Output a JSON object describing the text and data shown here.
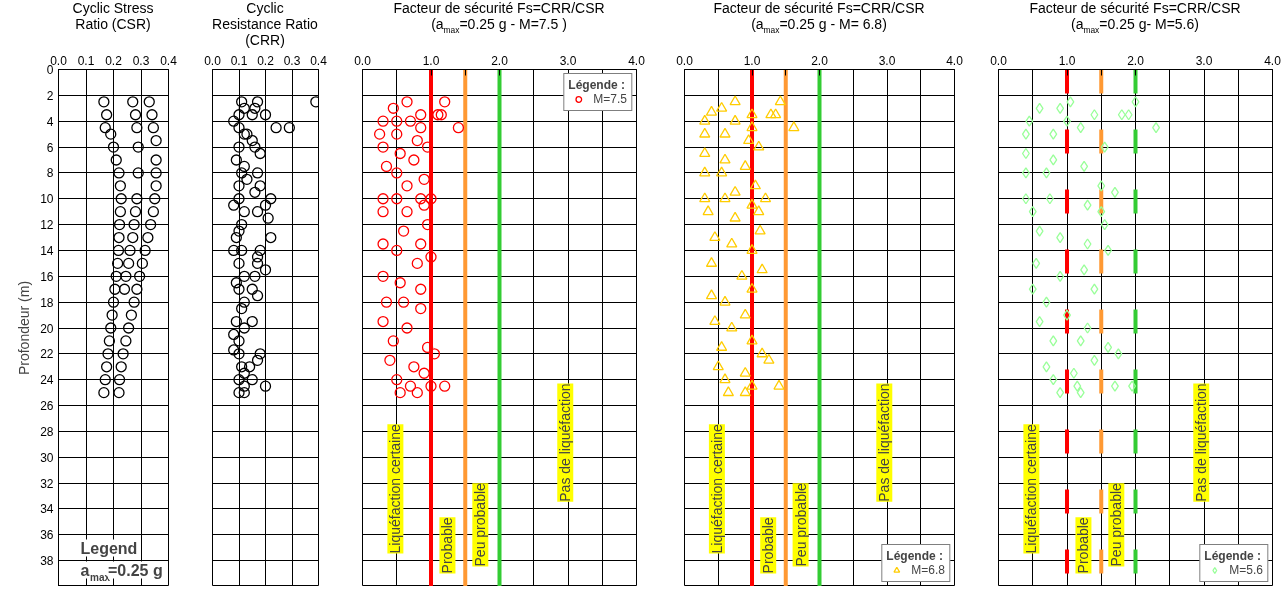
{
  "chart_data": [
    {
      "type": "scatter",
      "title": "Cyclic Stress Ratio (CSR)",
      "ylabel": "Profondeur (m)",
      "xlim": [
        0,
        0.4
      ],
      "xticks": [
        {
          "value": 0,
          "label": "0.0"
        },
        {
          "value": 0.1,
          "label": "0.1"
        },
        {
          "value": 0.2,
          "label": "0.2"
        },
        {
          "value": 0.3,
          "label": "0.3"
        },
        {
          "value": 0.4,
          "label": "0.4"
        }
      ],
      "ylim": [
        40,
        0
      ],
      "yticks": [
        0,
        2,
        4,
        6,
        8,
        10,
        12,
        14,
        16,
        18,
        20,
        22,
        24,
        26,
        28,
        30,
        32,
        34,
        36,
        38
      ],
      "grid": true,
      "marker": "circle",
      "annotations": [
        "Legend",
        "a$_{max}$=0.25 g"
      ],
      "series": [
        {
          "color": "#000000",
          "x": [
            0.165,
            0.175,
            0.17,
            0.19,
            0.2,
            0.21,
            0.22,
            0.225,
            0.228,
            0.225,
            0.222,
            0.22,
            0.218,
            0.215,
            0.21,
            0.205,
            0.2,
            0.195,
            0.19,
            0.185,
            0.18,
            0.175,
            0.17,
            0.165
          ],
          "values": [
            2.5,
            3.5,
            4.5,
            5,
            6,
            7,
            8,
            9,
            10,
            11,
            12,
            13,
            14,
            15,
            16,
            17,
            18,
            19,
            20,
            21,
            22,
            23,
            24,
            25
          ]
        },
        {
          "color": "#000000",
          "x": [
            0.27,
            0.28,
            0.285,
            0.29,
            0.29,
            0.285,
            0.28,
            0.275,
            0.27,
            0.26,
            0.255,
            0.245,
            0.24
          ],
          "values": [
            2.5,
            3.5,
            4.5,
            6,
            8,
            10,
            11,
            12,
            13,
            14,
            15,
            16,
            17
          ]
        },
        {
          "color": "#000000",
          "x": [
            0.33,
            0.34,
            0.345,
            0.355,
            0.355,
            0.355,
            0.355,
            0.35,
            0.345,
            0.335,
            0.325,
            0.315,
            0.305,
            0.295,
            0.285,
            0.275,
            0.265,
            0.255,
            0.245,
            0.235,
            0.228,
            0.222,
            0.22
          ],
          "values": [
            2.5,
            3.5,
            4.5,
            5.5,
            7,
            8,
            9,
            10,
            11,
            12,
            13,
            14,
            15,
            16,
            17,
            18,
            19,
            20,
            21,
            22,
            23,
            24,
            25
          ]
        }
      ]
    },
    {
      "type": "scatter",
      "title": "Cyclic Resistance Ratio (CRR)",
      "xlim": [
        0,
        0.4
      ],
      "xticks": [
        {
          "value": 0,
          "label": "0.0"
        },
        {
          "value": 0.1,
          "label": "0.1"
        },
        {
          "value": 0.2,
          "label": "0.2"
        },
        {
          "value": 0.3,
          "label": "0.3"
        },
        {
          "value": 0.4,
          "label": "0.4"
        }
      ],
      "ylim": [
        40,
        0
      ],
      "yticks": [
        0,
        2,
        4,
        6,
        8,
        10,
        12,
        14,
        16,
        18,
        20,
        22,
        24,
        26,
        28,
        30,
        32,
        34,
        36,
        38
      ],
      "grid": true,
      "marker": "circle",
      "tick_labels": "x",
      "series": [
        {
          "color": "#000000",
          "x": [
            0.11,
            0.17,
            0.39,
            0.12,
            0.16,
            0.15,
            0.2,
            0.08,
            0.24,
            0.29,
            0.1,
            0.13,
            0.15,
            0.16,
            0.18,
            0.09,
            0.12,
            0.17,
            0.13,
            0.18,
            0.16,
            0.1,
            0.22,
            0.08,
            0.2,
            0.17,
            0.21,
            0.11,
            0.09,
            0.22,
            0.18,
            0.08,
            0.17,
            0.17,
            0.2,
            0.09,
            0.16,
            0.15,
            0.17,
            0.12,
            0.09,
            0.15,
            0.08,
            0.1,
            0.08,
            0.18,
            0.17,
            0.14,
            0.12,
            0.15,
            0.2,
            0.1,
            0.12,
            0.1,
            0.12,
            0.1,
            0.11,
            0.1,
            0.12,
            0.1,
            0.11,
            0.1,
            0.12,
            0.1,
            0.11,
            0.12,
            0.1,
            0.11,
            0.1,
            0.12
          ],
          "values": [
            2.5,
            2.5,
            2.5,
            3,
            3,
            3.5,
            3.5,
            4,
            4.5,
            4.5,
            4.5,
            5,
            5.5,
            6,
            6.5,
            7,
            7.5,
            8,
            8.5,
            9,
            9.5,
            10,
            10,
            10.5,
            10.5,
            11,
            11.5,
            12,
            13,
            13,
            14,
            14,
            14.5,
            15,
            15.5,
            16.5,
            16,
            17,
            17.5,
            18,
            19.5,
            19.5,
            20.5,
            21,
            21.7,
            22,
            22.5,
            23,
            23.5,
            24,
            24.5,
            25,
            25,
            3.5,
            5,
            6,
            8,
            9,
            11,
            12.5,
            14,
            15,
            16,
            17,
            18.5,
            20,
            22,
            23,
            24,
            24.5
          ]
        }
      ]
    },
    {
      "type": "scatter",
      "title": "Facteur de sécurité Fs=CRR/CSR",
      "subtitle": "(a$_{max}$=0.25 g - M=7.5 )",
      "xlim": [
        0,
        4
      ],
      "xticks": [
        {
          "value": 0,
          "label": "0.0"
        },
        {
          "value": 0.5,
          "label": null
        },
        {
          "value": 1,
          "label": "1.0"
        },
        {
          "value": 1.5,
          "label": null
        },
        {
          "value": 2,
          "label": "2.0"
        },
        {
          "value": 2.5,
          "label": null
        },
        {
          "value": 3,
          "label": "3.0"
        },
        {
          "value": 3.5,
          "label": null
        },
        {
          "value": 4,
          "label": "4.0"
        }
      ],
      "ylim": [
        40,
        0
      ],
      "yticks": [
        0,
        2,
        4,
        6,
        8,
        10,
        12,
        14,
        16,
        18,
        20,
        22,
        24,
        26,
        28,
        30,
        32,
        34,
        36,
        38
      ],
      "grid": true,
      "marker": "circle",
      "tick_labels": "x",
      "legend": "top right",
      "legend_title": "Légende :",
      "ref_lines": [
        {
          "axis": "x",
          "value": 1,
          "color": "#ff0000",
          "line_style": "solid"
        },
        {
          "axis": "x",
          "value": 1.5,
          "color": "#ff9933",
          "line_style": "solid"
        },
        {
          "axis": "x",
          "value": 2,
          "color": "#33cc33",
          "line_style": "solid"
        }
      ],
      "annotations": [
        "Liquéfaction certaine",
        "Probable",
        "Peu probable",
        "Pas de liquéfaction"
      ],
      "series": [
        {
          "name": "M=7.5",
          "color": "#ff0000",
          "x": [
            0.65,
            1.2,
            0.45,
            1.15,
            1.1,
            0.85,
            0.3,
            0.5,
            0.7,
            1.4,
            0.85,
            0.25,
            0.5,
            0.8,
            0.95,
            0.3,
            0.55,
            0.75,
            0.35,
            0.5,
            0.9,
            0.65,
            0.3,
            0.5,
            0.85,
            1.0,
            0.9,
            0.65,
            0.3,
            0.95,
            0.6,
            0.85,
            0.3,
            0.5,
            1.0,
            0.8,
            0.3,
            0.55,
            0.85,
            0.35,
            0.6,
            0.85,
            0.3,
            0.65,
            0.45,
            0.95,
            1.05,
            0.4,
            0.75,
            0.9,
            0.5,
            0.7,
            1.0,
            1.2,
            0.55,
            0.8
          ],
          "values": [
            2.5,
            2.5,
            3,
            3.5,
            3.5,
            3.5,
            4,
            4,
            4,
            4.5,
            4.5,
            5,
            5,
            5.5,
            6,
            6,
            6.5,
            7,
            7.5,
            8,
            8.5,
            9,
            10,
            10,
            10,
            10,
            10.5,
            11,
            11,
            12,
            12.5,
            13.5,
            13.5,
            14,
            14.5,
            15,
            16,
            16.5,
            17,
            18,
            18,
            18.5,
            19.5,
            20,
            21,
            21.5,
            22,
            22.5,
            23,
            23.5,
            24,
            24.5,
            24.5,
            24.5,
            25,
            25
          ]
        }
      ]
    },
    {
      "type": "scatter",
      "title": "Facteur de sécurité Fs=CRR/CSR",
      "subtitle": "(a$_{max}$=0.25 g - M= 6.8)",
      "xlim": [
        0,
        4
      ],
      "xticks": [
        {
          "value": 0,
          "label": "0.0"
        },
        {
          "value": 0.5,
          "label": null
        },
        {
          "value": 1,
          "label": "1.0"
        },
        {
          "value": 1.5,
          "label": null
        },
        {
          "value": 2,
          "label": "2.0"
        },
        {
          "value": 2.5,
          "label": null
        },
        {
          "value": 3,
          "label": "3.0"
        },
        {
          "value": 3.5,
          "label": null
        },
        {
          "value": 4,
          "label": "4.0"
        }
      ],
      "ylim": [
        40,
        0
      ],
      "yticks": [
        0,
        2,
        4,
        6,
        8,
        10,
        12,
        14,
        16,
        18,
        20,
        22,
        24,
        26,
        28,
        30,
        32,
        34,
        36,
        38
      ],
      "grid": true,
      "marker": "triangle",
      "tick_labels": "x",
      "legend": "bottom right",
      "legend_title": "Légende :",
      "ref_lines": [
        {
          "axis": "x",
          "value": 1,
          "color": "#ff0000",
          "line_style": "solid"
        },
        {
          "axis": "x",
          "value": 1.5,
          "color": "#ff9933",
          "line_style": "solid"
        },
        {
          "axis": "x",
          "value": 2,
          "color": "#33cc33",
          "line_style": "solid"
        }
      ],
      "annotations": [
        "Liquéfaction certaine",
        "Probable",
        "Peu probable",
        "Pas de liquéfaction"
      ],
      "series": [
        {
          "name": "M=6.8",
          "color": "#ffcc00",
          "x": [
            0.75,
            1.42,
            0.55,
            0.4,
            1.28,
            1.35,
            1.0,
            0.3,
            0.75,
            1.62,
            1.0,
            0.3,
            0.6,
            0.95,
            1.1,
            0.3,
            0.6,
            0.9,
            0.3,
            0.55,
            1.05,
            0.75,
            0.3,
            0.6,
            1.2,
            1.0,
            1.1,
            0.35,
            0.75,
            1.12,
            0.45,
            0.7,
            1.0,
            0.4,
            1.15,
            0.85,
            1.0,
            0.4,
            0.6,
            0.9,
            0.45,
            0.7,
            1.0,
            0.55,
            1.15,
            1.25,
            0.5,
            0.9,
            0.6,
            1.0,
            1.4,
            0.65,
            0.9
          ],
          "values": [
            2.5,
            2.5,
            3,
            3.3,
            3.5,
            3.5,
            3.5,
            4,
            4,
            4.5,
            4.5,
            5,
            5,
            5.5,
            6,
            6.5,
            7,
            7.5,
            8,
            8,
            9,
            9.5,
            10,
            10,
            10,
            10.5,
            11,
            11,
            11.5,
            12.5,
            13,
            13.5,
            14,
            15,
            15.5,
            16,
            17,
            17.5,
            18,
            19,
            19.5,
            20,
            21,
            21.5,
            22,
            22.5,
            23,
            23.5,
            24,
            24.5,
            24.5,
            25,
            25
          ]
        }
      ]
    },
    {
      "type": "scatter",
      "title": "Facteur de sécurité Fs=CRR/CSR",
      "subtitle": "(a$_{max}$=0.25 g- M=5.6)",
      "xlim": [
        0,
        4
      ],
      "xticks": [
        {
          "value": 0,
          "label": "0.0"
        },
        {
          "value": 0.5,
          "label": null
        },
        {
          "value": 1,
          "label": "1.0"
        },
        {
          "value": 1.5,
          "label": null
        },
        {
          "value": 2,
          "label": "2.0"
        },
        {
          "value": 2.5,
          "label": null
        },
        {
          "value": 3,
          "label": "3.0"
        },
        {
          "value": 3.5,
          "label": null
        },
        {
          "value": 4,
          "label": "4.0"
        }
      ],
      "ylim": [
        40,
        0
      ],
      "yticks": [
        0,
        2,
        4,
        6,
        8,
        10,
        12,
        14,
        16,
        18,
        20,
        22,
        24,
        26,
        28,
        30,
        32,
        34,
        36,
        38
      ],
      "grid": true,
      "marker": "diamond",
      "tick_labels": "x",
      "legend": "bottom right",
      "legend_title": "Légende :",
      "ref_lines": [
        {
          "axis": "x",
          "value": 1,
          "color": "#ff0000",
          "line_style": "dashed"
        },
        {
          "axis": "x",
          "value": 1.5,
          "color": "#ff9933",
          "line_style": "dashed"
        },
        {
          "axis": "x",
          "value": 2,
          "color": "#33cc33",
          "line_style": "dashed"
        }
      ],
      "annotations": [
        "Liquéfaction certaine",
        "Probable",
        "Peu probable",
        "Pas de liquéfaction"
      ],
      "series": [
        {
          "name": "M=5.6",
          "color": "#99ff99",
          "x": [
            1.05,
            2.0,
            0.6,
            0.9,
            1.9,
            1.8,
            1.4,
            0.45,
            1.0,
            2.3,
            1.2,
            0.4,
            0.8,
            1.55,
            0.4,
            0.8,
            1.25,
            0.4,
            0.7,
            1.5,
            1.7,
            0.4,
            0.75,
            1.3,
            1.5,
            0.5,
            1.55,
            0.6,
            0.9,
            1.3,
            1.6,
            0.55,
            1.25,
            0.9,
            0.5,
            1.4,
            0.7,
            1.0,
            0.6,
            1.3,
            1.2,
            0.8,
            1.6,
            1.75,
            1.4,
            0.7,
            1.1,
            0.8,
            1.15,
            1.7,
            1.95,
            0.9,
            1.2
          ],
          "values": [
            2.5,
            2.5,
            3,
            3,
            3.5,
            3.5,
            3.5,
            4,
            4,
            4.5,
            4.5,
            5,
            5,
            6,
            6.5,
            7,
            7.5,
            8,
            8,
            9,
            9.5,
            10,
            10,
            10.5,
            11,
            11,
            12,
            12.5,
            13,
            13.5,
            14,
            15,
            15.5,
            16,
            17,
            17,
            18,
            19,
            19.5,
            20,
            21,
            21,
            21.5,
            22,
            22.5,
            23,
            23.5,
            24,
            24.5,
            24.5,
            24.5,
            25,
            25
          ]
        }
      ]
    }
  ]
}
